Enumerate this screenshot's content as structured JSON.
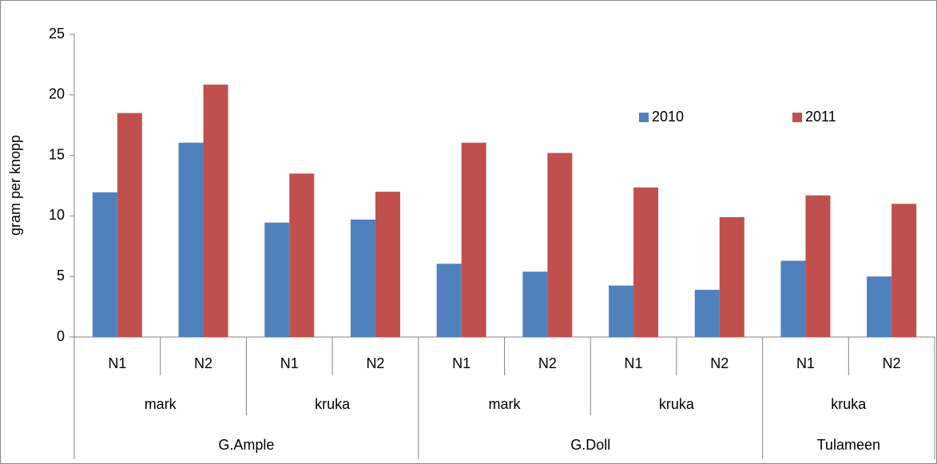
{
  "chart_data": {
    "type": "bar",
    "y_label": "gram per knopp",
    "category_groups": [
      {
        "label": "G.Ample",
        "groups": [
          {
            "label": "mark",
            "categories": [
              "N1",
              "N2"
            ]
          },
          {
            "label": "kruka",
            "categories": [
              "N1",
              "N2"
            ]
          }
        ]
      },
      {
        "label": "G.Doll",
        "groups": [
          {
            "label": "mark",
            "categories": [
              "N1",
              "N2"
            ]
          },
          {
            "label": "kruka",
            "categories": [
              "N1",
              "N2"
            ]
          }
        ]
      },
      {
        "label": "Tulameen",
        "groups": [
          {
            "label": "kruka",
            "categories": [
              "N1",
              "N2"
            ]
          }
        ]
      }
    ],
    "series": [
      {
        "name": "2010",
        "color": "#4f81bd",
        "values": [
          11.95,
          16.05,
          9.45,
          9.7,
          6.05,
          5.4,
          4.25,
          3.9,
          6.3,
          5.0
        ]
      },
      {
        "name": "2011",
        "color": "#c0504d",
        "values": [
          18.5,
          20.85,
          13.5,
          12.0,
          16.05,
          15.2,
          12.35,
          9.9,
          11.7,
          11.0
        ]
      }
    ],
    "ylim": [
      0,
      25
    ],
    "yticks": [
      0,
      5,
      10,
      15,
      20,
      25
    ],
    "grid": false,
    "legend": "upper right"
  }
}
